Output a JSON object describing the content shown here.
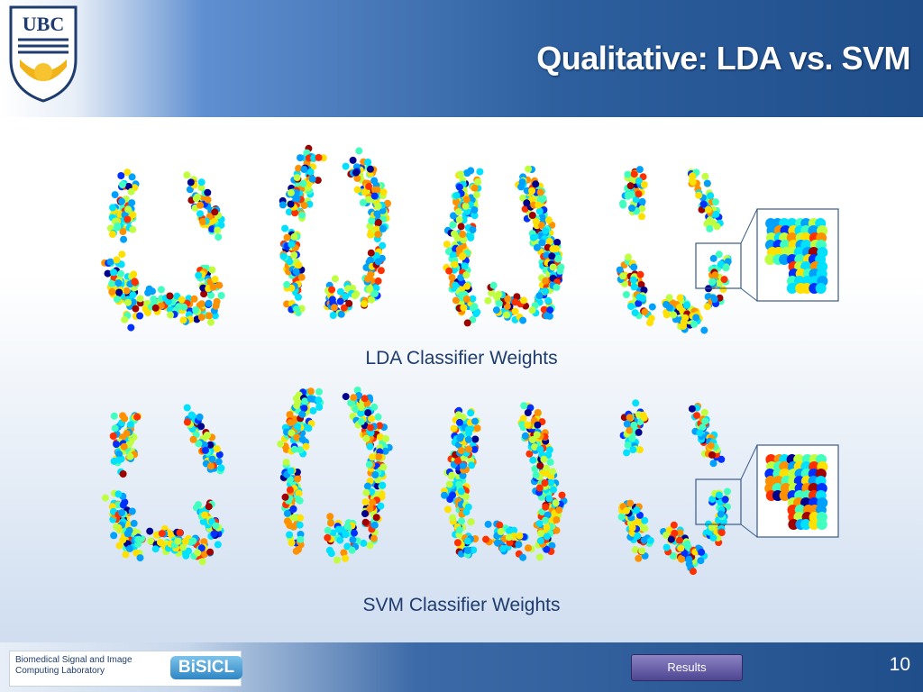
{
  "header": {
    "logo": "UBC",
    "title": "Qualitative: LDA vs. SVM"
  },
  "figures": [
    {
      "caption": "LDA Classifier Weights"
    },
    {
      "caption": "SVM Classifier Weights"
    }
  ],
  "footer": {
    "lab": [
      "Biomedical Signal and Image",
      "Computing Laboratory"
    ],
    "lab_logo": "BiSICL",
    "nav_button": "Results",
    "page_number": "10"
  }
}
